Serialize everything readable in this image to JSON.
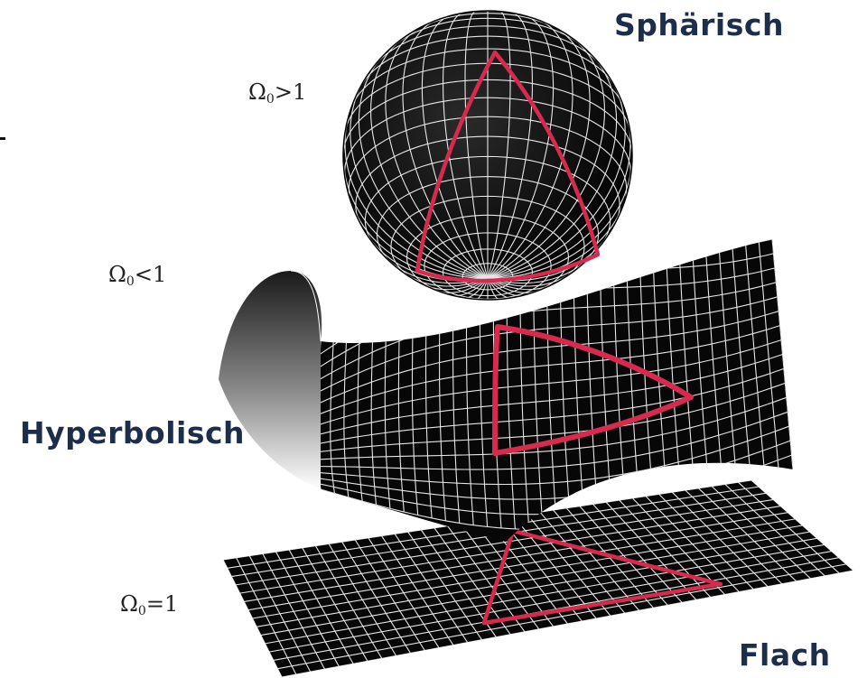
{
  "labels": {
    "spherical": "Sphärisch",
    "hyperbolic": "Hyperbolisch",
    "flat": "Flach"
  },
  "density": {
    "spherical": {
      "symbol": "Ω",
      "subscript": "0",
      "relation": ">1"
    },
    "hyperbolic": {
      "symbol": "Ω",
      "subscript": "0",
      "relation": "<1"
    },
    "flat": {
      "symbol": "Ω",
      "subscript": "0",
      "relation": "=1"
    }
  },
  "colors": {
    "surface": "#0a0a0a",
    "grid": "#ffffff",
    "triangle": "#d62a4f",
    "heading": "#1c2e4a"
  }
}
